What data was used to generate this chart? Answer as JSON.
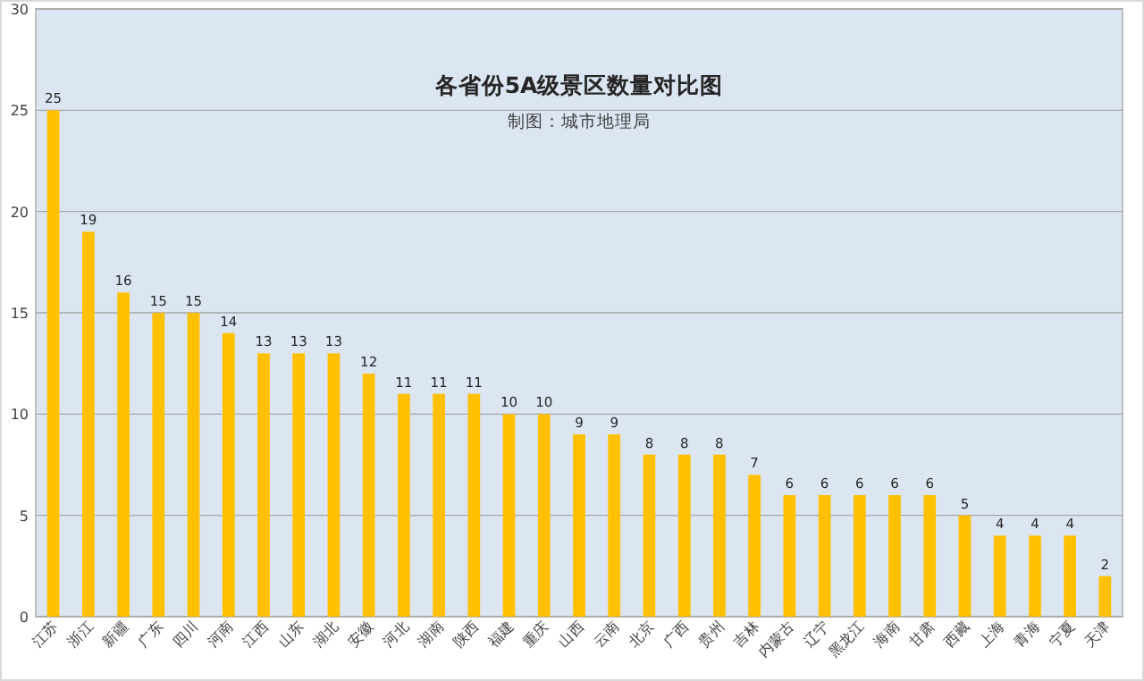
{
  "chart_data": {
    "type": "bar",
    "title": "各省份5A级景区数量对比图",
    "subtitle": "制图：城市地理局",
    "categories": [
      "江苏",
      "浙江",
      "新疆",
      "广东",
      "四川",
      "河南",
      "江西",
      "山东",
      "湖北",
      "安徽",
      "河北",
      "湖南",
      "陕西",
      "福建",
      "重庆",
      "山西",
      "云南",
      "北京",
      "广西",
      "贵州",
      "吉林",
      "内蒙古",
      "辽宁",
      "黑龙江",
      "海南",
      "甘肃",
      "西藏",
      "上海",
      "青海",
      "宁夏",
      "天津"
    ],
    "values": [
      25,
      19,
      16,
      15,
      15,
      14,
      13,
      13,
      13,
      12,
      11,
      11,
      11,
      10,
      10,
      9,
      9,
      8,
      8,
      8,
      7,
      6,
      6,
      6,
      6,
      6,
      5,
      4,
      4,
      4,
      2
    ],
    "color": "#ffc000",
    "ylim": [
      0,
      30
    ],
    "yticks": [
      0,
      5,
      10,
      15,
      20,
      25,
      30
    ],
    "grid": "y",
    "data_labels": true
  }
}
